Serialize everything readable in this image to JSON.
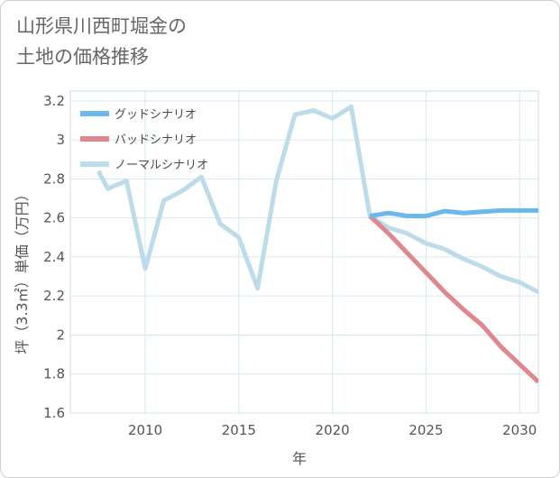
{
  "title": {
    "line1": "山形県川西町堀金の",
    "line2": "土地の価格推移"
  },
  "chart_data": {
    "type": "line",
    "xlabel": "年",
    "ylabel": "坪（3.3㎡）単価（万円）",
    "xlim": [
      2006,
      2031
    ],
    "ylim": [
      1.6,
      3.25
    ],
    "xticks": [
      2010,
      2015,
      2020,
      2025,
      2030
    ],
    "xtick_labels": [
      "2010",
      "2015",
      "2020",
      "2025",
      "2030"
    ],
    "yticks": [
      1.6,
      1.8,
      2,
      2.2,
      2.4,
      2.6,
      2.8,
      3,
      3.2
    ],
    "ytick_labels": [
      "1.6",
      "1.8",
      "2",
      "2.2",
      "2.4",
      "2.6",
      "2.8",
      "3",
      "3.2"
    ],
    "grid": true,
    "legend_position": "top-left",
    "series": [
      {
        "name": "グッドシナリオ",
        "color": "#6bb8ee",
        "x": [
          2022,
          2023,
          2024,
          2025,
          2026,
          2027,
          2028,
          2029,
          2030,
          2031
        ],
        "values": [
          2.61,
          2.625,
          2.61,
          2.61,
          2.635,
          2.625,
          2.632,
          2.638,
          2.638,
          2.638
        ]
      },
      {
        "name": "バッドシナリオ",
        "color": "#e0868f",
        "x": [
          2022,
          2023,
          2024,
          2025,
          2026,
          2027,
          2028,
          2029,
          2030,
          2031
        ],
        "values": [
          2.61,
          2.52,
          2.42,
          2.32,
          2.22,
          2.13,
          2.05,
          1.94,
          1.85,
          1.76
        ]
      },
      {
        "name": "ノーマルシナリオ",
        "color": "#bddcea",
        "x": [
          2007.5,
          2008,
          2009,
          2010,
          2011,
          2012,
          2013,
          2014,
          2015,
          2016,
          2017,
          2018,
          2019,
          2020,
          2021,
          2022,
          2023,
          2024,
          2025,
          2026,
          2027,
          2028,
          2029,
          2030,
          2031
        ],
        "values": [
          2.84,
          2.75,
          2.79,
          2.34,
          2.69,
          2.74,
          2.81,
          2.57,
          2.5,
          2.24,
          2.79,
          3.13,
          3.15,
          3.11,
          3.17,
          2.61,
          2.55,
          2.52,
          2.47,
          2.44,
          2.39,
          2.35,
          2.3,
          2.27,
          2.22
        ]
      }
    ]
  }
}
